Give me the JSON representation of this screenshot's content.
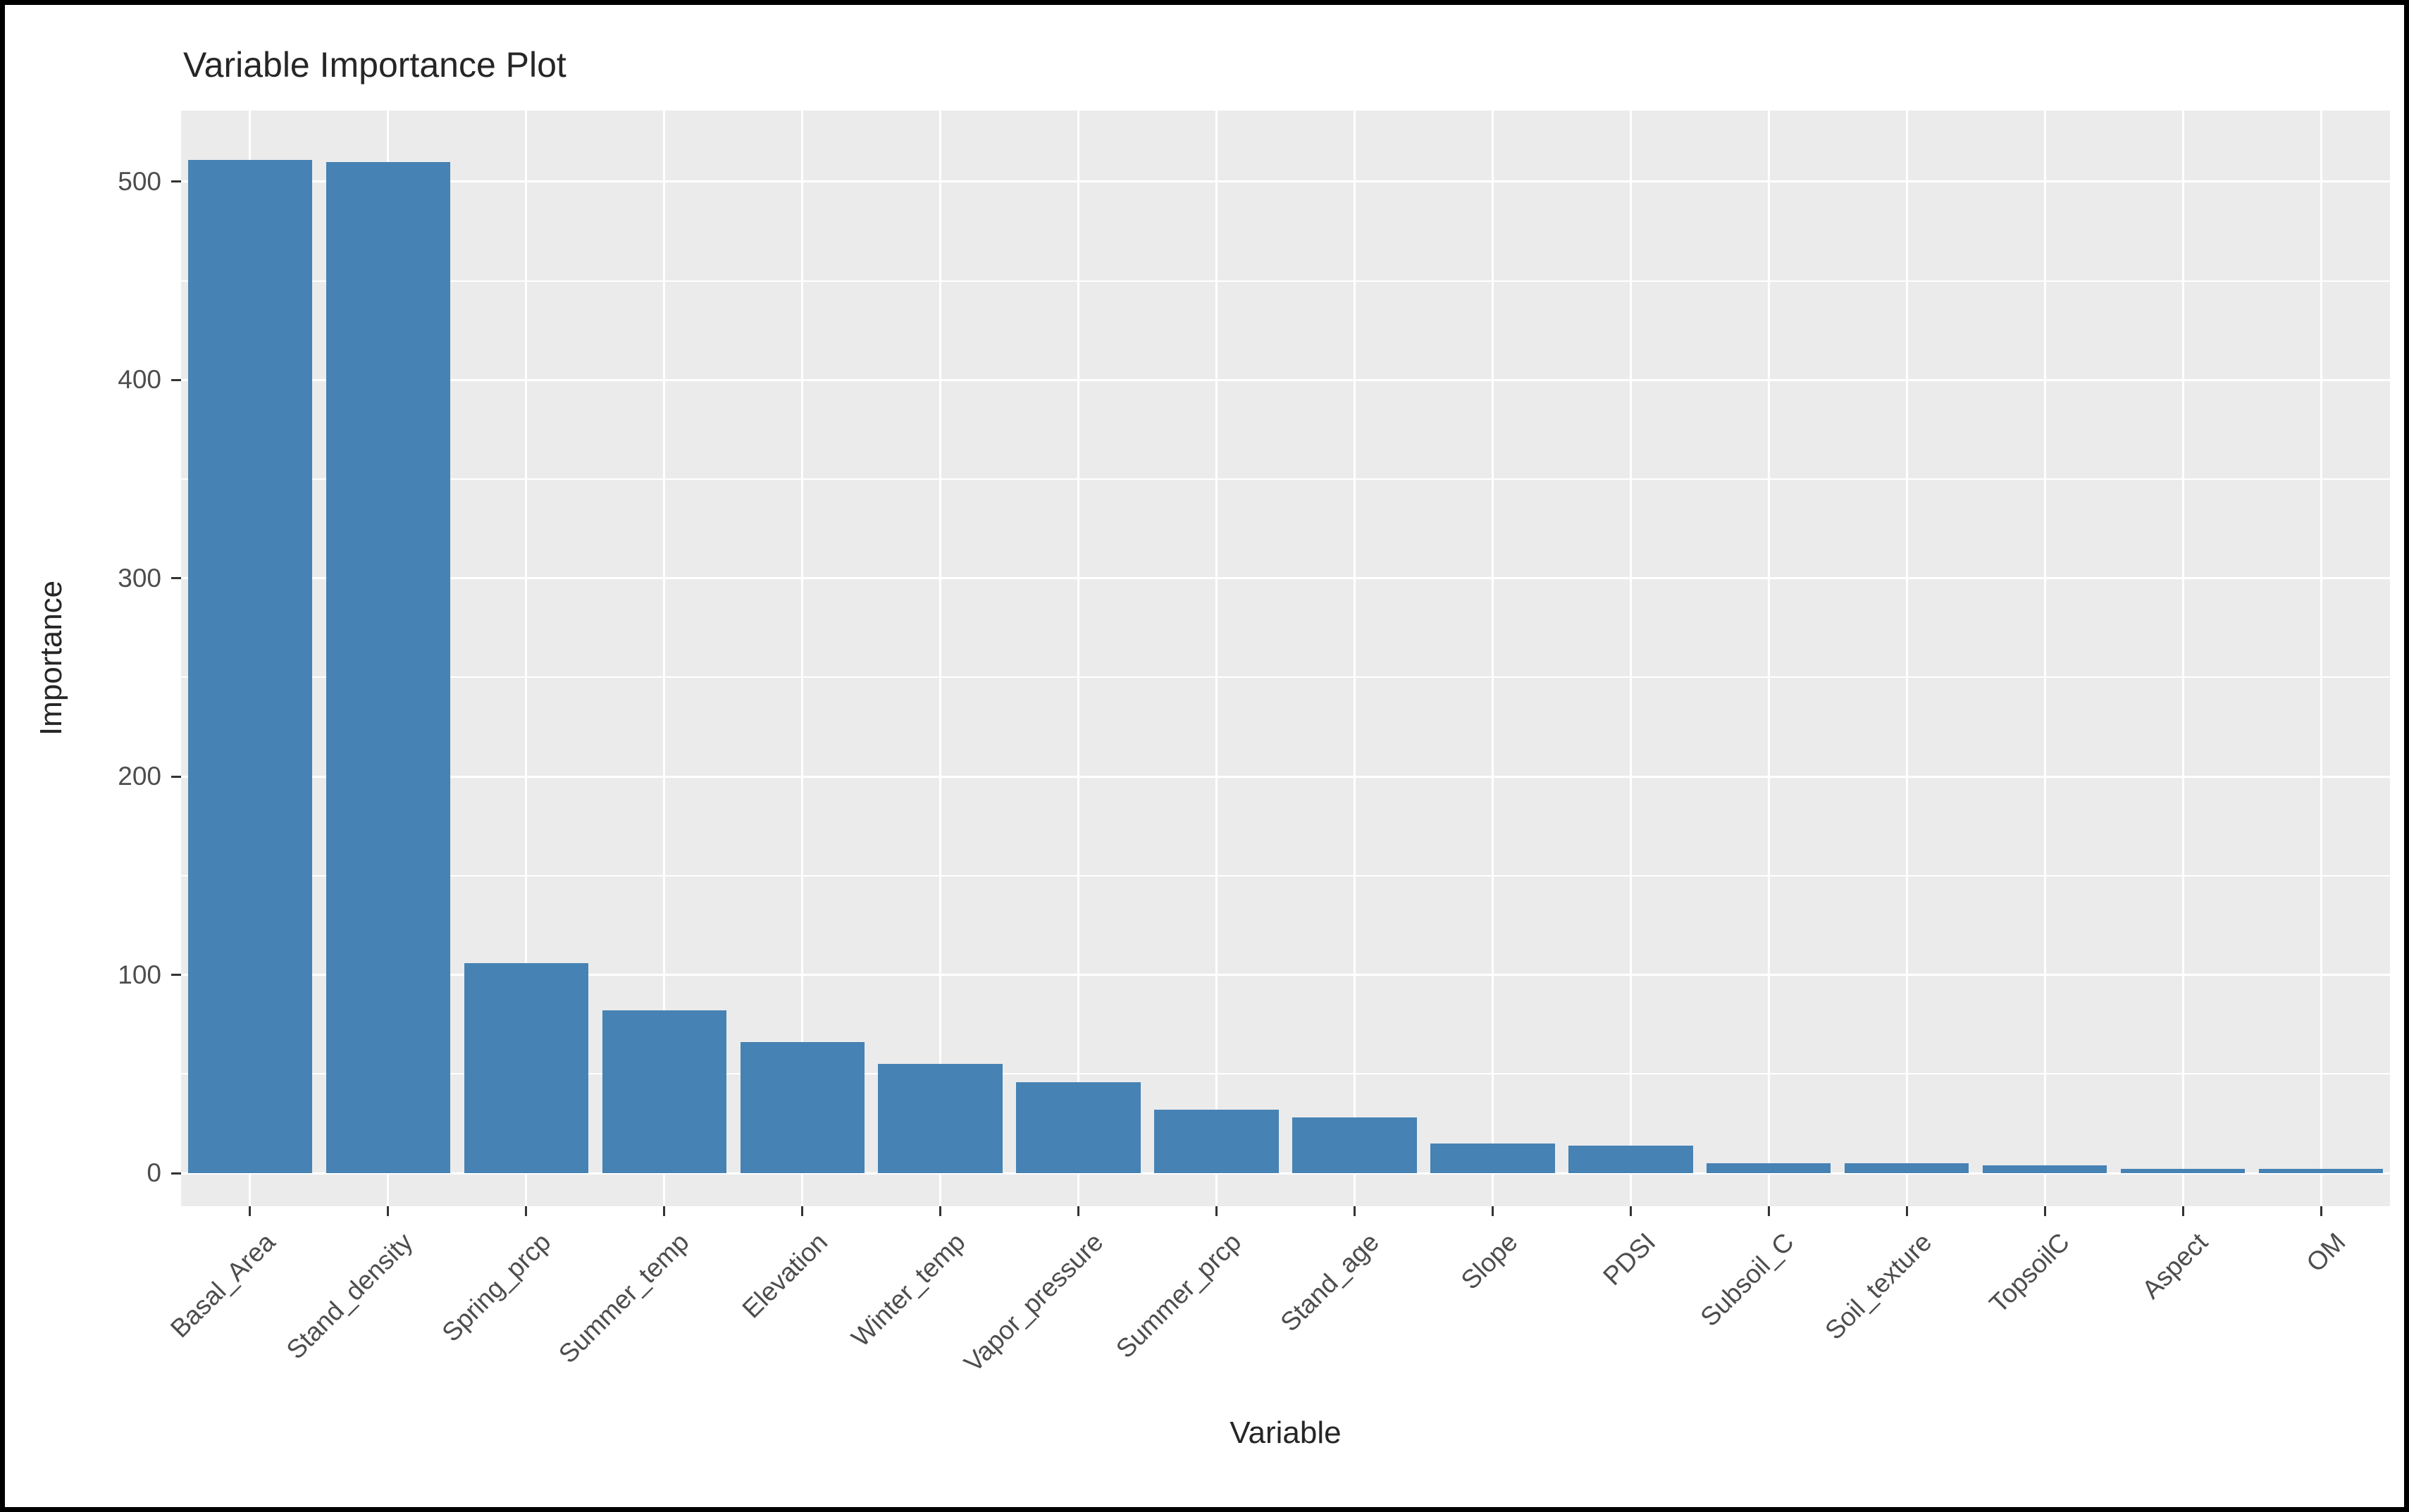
{
  "page": {
    "background": "#FFFFFF",
    "frame_color": "#000000"
  },
  "chart_data": {
    "type": "bar",
    "title": "Variable Importance Plot",
    "xlabel": "Variable",
    "ylabel": "Importance",
    "categories": [
      "Basal_Area",
      "Stand_density",
      "Spring_prcp",
      "Summer_temp",
      "Elevation",
      "Winter_temp",
      "Vapor_pressure",
      "Summer_prcp",
      "Stand_age",
      "Slope",
      "PDSI",
      "Subsoil_C",
      "Soil_texture",
      "TopsoilC",
      "Aspect",
      "OM"
    ],
    "values": [
      511,
      510,
      106,
      82,
      66,
      55,
      46,
      32,
      28,
      15,
      14,
      5,
      5,
      4,
      2,
      2
    ],
    "yticks": [
      0,
      100,
      200,
      300,
      400,
      500
    ],
    "ylim": [
      0,
      540
    ],
    "grid": "major-and-minor",
    "legend": "none",
    "bar_color": "#4682B4",
    "panel_bg": "#EBEBEB",
    "grid_color": "#FFFFFF",
    "tick_label_color": "#4D4D4D",
    "text_color": "#262626"
  }
}
